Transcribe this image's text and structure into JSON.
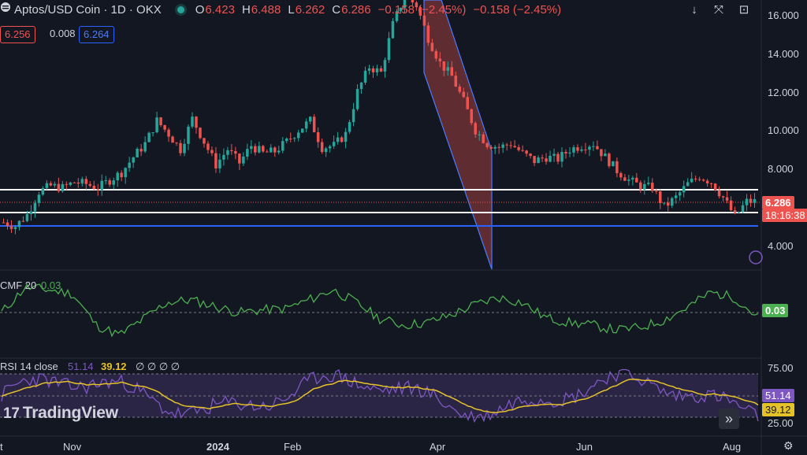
{
  "header": {
    "symbol": "Aptos/USD Coin · 1D · OKX",
    "open_label": "O",
    "open": "6.423",
    "high_label": "H",
    "high": "6.488",
    "low_label": "L",
    "low": "6.262",
    "close_label": "C",
    "close": "6.286",
    "change": "−0.158 (−2.45%)",
    "change2": "−0.158 (−2.45%)"
  },
  "quote_boxes": {
    "bid": "6.256",
    "spread": "0.008",
    "ask": "6.264"
  },
  "toolbar": {
    "down_icon": "↓",
    "fullscreen_icon": "⤧",
    "snapshot_icon": "⊡"
  },
  "price_axis": {
    "labels": [
      "16.000",
      "14.000",
      "12.000",
      "10.000",
      "8.000",
      "4.000"
    ],
    "last_price": "6.286",
    "countdown": "18:16:38"
  },
  "time_axis": {
    "labels": [
      "t",
      "Nov",
      "2024",
      "Feb",
      "Apr",
      "Jun",
      "Aug"
    ]
  },
  "cmf": {
    "title": "CMF 20",
    "value": "0.03",
    "badge": "0.03"
  },
  "rsi": {
    "title": "RSI 14 close",
    "rsi_value": "51.14",
    "ma_value": "39.12",
    "extra": "∅ ∅ ∅ ∅",
    "levels": [
      "75.00",
      "25.00"
    ],
    "badge_rsi": "51.14",
    "badge_ma": "39.12"
  },
  "brand": {
    "name": "TradingView",
    "mark": "17"
  },
  "colors": {
    "bg": "#131722",
    "up": "#26a69a",
    "down": "#ef5350",
    "cmf": "#4caf50",
    "rsi": "#7e57c2",
    "rsi_ma": "#e6c229",
    "blue": "#2962ff",
    "white_line": "#ffffff"
  },
  "chart_data": {
    "type": "candlestick",
    "instrument": "Aptos/USD Coin",
    "interval": "1D",
    "approx_closes": [
      5.2,
      5.0,
      5.6,
      6.8,
      7.1,
      7.0,
      7.3,
      7.2,
      7.0,
      7.4,
      7.8,
      8.6,
      9.3,
      10.5,
      9.8,
      9.0,
      10.6,
      9.4,
      8.2,
      9.0,
      8.3,
      9.2,
      8.8,
      8.9,
      9.4,
      10.0,
      10.5,
      9.1,
      9.2,
      9.8,
      12.0,
      13.3,
      13.0,
      15.5,
      17.0,
      16.5,
      14.8,
      13.5,
      12.8,
      11.5,
      10.0,
      9.3,
      9.1,
      9.3,
      8.8,
      8.4,
      8.6,
      8.5,
      9.0,
      9.2,
      9.3,
      8.6,
      7.9,
      7.4,
      7.1,
      7.0,
      6.0,
      6.5,
      7.2,
      7.6,
      7.3,
      6.5,
      5.5,
      6.286
    ],
    "horizontal_levels": [
      7.0,
      5.9,
      5.2
    ],
    "shape": {
      "kind": "parallelogram",
      "from": "Apr",
      "to": "Apr",
      "top": 17.0,
      "bottom": 2.9
    }
  }
}
